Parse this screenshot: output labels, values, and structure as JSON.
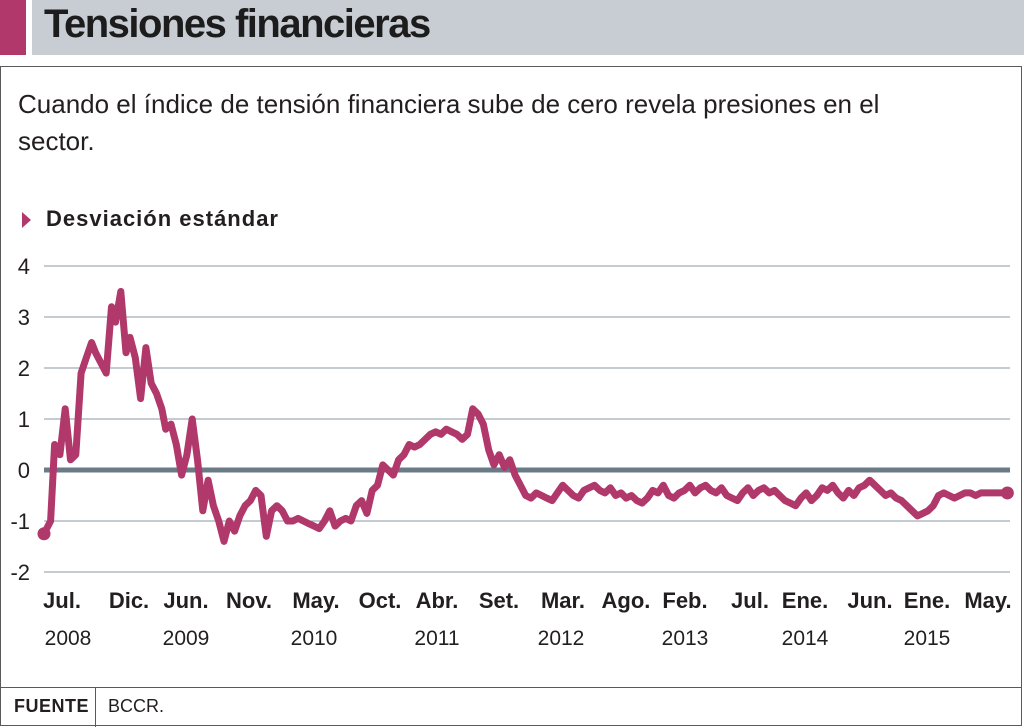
{
  "header": {
    "title": "Tensiones financieras"
  },
  "subtitle": "Cuando el índice de tensión financiera sube de cero revela presiones en el sector.",
  "unit_label": "Desviación estándar",
  "source": {
    "key": "FUENTE",
    "value": "BCCR."
  },
  "colors": {
    "accent": "#b0386a",
    "title_bar": "#c8ccd3",
    "zero_line": "#6b7a87",
    "grid": "#8a97a6"
  },
  "chart_data": {
    "type": "line",
    "title": "Tensiones financieras",
    "ylabel": "Desviación estándar",
    "ylim": [
      -2,
      4
    ],
    "yticks": [
      "4",
      "3",
      "2",
      "1",
      "0",
      "-1",
      "-2"
    ],
    "grid": true,
    "x_month_labels": [
      "Jul.",
      "Dic.",
      "Jun.",
      "Nov.",
      "May.",
      "Oct.",
      "Abr.",
      "Set.",
      "Mar.",
      "Ago.",
      "Feb.",
      "Jul.",
      "Ene.",
      "Jun.",
      "Ene.",
      "May."
    ],
    "x_year_labels": [
      "2008",
      "2009",
      "2010",
      "2011",
      "2012",
      "2013",
      "2014",
      "2015"
    ],
    "series": [
      {
        "name": "Índice de tensión financiera",
        "x": [
          2008.5,
          2008.55,
          2008.58,
          2008.62,
          2008.66,
          2008.7,
          2008.74,
          2008.78,
          2008.82,
          2008.86,
          2008.89,
          2008.93,
          2008.97,
          2009.01,
          2009.04,
          2009.08,
          2009.12,
          2009.15,
          2009.19,
          2009.23,
          2009.27,
          2009.31,
          2009.35,
          2009.39,
          2009.42,
          2009.46,
          2009.5,
          2009.54,
          2009.58,
          2009.62,
          2009.66,
          2009.7,
          2009.74,
          2009.78,
          2009.82,
          2009.86,
          2009.9,
          2009.94,
          2009.98,
          2010.02,
          2010.06,
          2010.1,
          2010.14,
          2010.18,
          2010.22,
          2010.26,
          2010.3,
          2010.34,
          2010.38,
          2010.42,
          2010.46,
          2010.5,
          2010.54,
          2010.58,
          2010.62,
          2010.66,
          2010.7,
          2010.74,
          2010.78,
          2010.82,
          2010.86,
          2010.9,
          2010.94,
          2010.98,
          2011.02,
          2011.06,
          2011.1,
          2011.14,
          2011.18,
          2011.22,
          2011.26,
          2011.3,
          2011.34,
          2011.38,
          2011.42,
          2011.46,
          2011.5,
          2011.54,
          2011.58,
          2011.62,
          2011.66,
          2011.7,
          2011.74,
          2011.78,
          2011.82,
          2011.86,
          2011.9,
          2011.94,
          2011.98,
          2012.02,
          2012.06,
          2012.1,
          2012.14,
          2012.18,
          2012.22,
          2012.26,
          2012.3,
          2012.34,
          2012.38,
          2012.42,
          2012.46,
          2012.5,
          2012.54,
          2012.58,
          2012.62,
          2012.66,
          2012.7,
          2012.74,
          2012.78,
          2012.82,
          2012.86,
          2012.9,
          2012.94,
          2012.98,
          2013.02,
          2013.06,
          2013.1,
          2013.14,
          2013.18,
          2013.22,
          2013.26,
          2013.3,
          2013.34,
          2013.38,
          2013.42,
          2013.46,
          2013.5,
          2013.54,
          2013.58,
          2013.62,
          2013.66,
          2013.7,
          2013.74,
          2013.78,
          2013.82,
          2013.86,
          2013.9,
          2013.94,
          2013.98,
          2014.02,
          2014.06,
          2014.1,
          2014.14,
          2014.18,
          2014.22,
          2014.26,
          2014.3,
          2014.34,
          2014.38,
          2014.42,
          2014.46,
          2014.5,
          2014.54,
          2014.58,
          2014.62,
          2014.66,
          2014.7,
          2014.74,
          2014.78,
          2014.82,
          2014.86,
          2014.9,
          2014.94,
          2014.98,
          2015.02,
          2015.06,
          2015.1,
          2015.14,
          2015.18,
          2015.22,
          2015.26,
          2015.3,
          2015.34,
          2015.38,
          2015.42,
          2015.46,
          2015.5,
          2015.54,
          2015.58,
          2015.62,
          2015.66,
          2015.7,
          2015.74,
          2015.78
        ],
        "values": [
          -1.25,
          -1.0,
          0.5,
          0.3,
          1.2,
          0.2,
          0.3,
          1.9,
          2.2,
          2.5,
          2.3,
          2.1,
          1.9,
          3.2,
          2.9,
          3.5,
          2.3,
          2.6,
          2.2,
          1.4,
          2.4,
          1.7,
          1.5,
          1.2,
          0.8,
          0.9,
          0.5,
          -0.1,
          0.3,
          1.0,
          0.2,
          -0.8,
          -0.2,
          -0.7,
          -1.0,
          -1.4,
          -1.0,
          -1.2,
          -0.9,
          -0.7,
          -0.6,
          -0.4,
          -0.5,
          -1.3,
          -0.8,
          -0.7,
          -0.8,
          -1.0,
          -1.0,
          -0.95,
          -1.0,
          -1.05,
          -1.1,
          -1.15,
          -1.0,
          -0.8,
          -1.1,
          -1.0,
          -0.95,
          -1.0,
          -0.7,
          -0.6,
          -0.85,
          -0.4,
          -0.3,
          0.1,
          0.0,
          -0.1,
          0.2,
          0.3,
          0.5,
          0.45,
          0.5,
          0.6,
          0.7,
          0.75,
          0.7,
          0.8,
          0.75,
          0.7,
          0.6,
          0.7,
          1.2,
          1.1,
          0.9,
          0.4,
          0.1,
          0.3,
          0.05,
          0.2,
          -0.1,
          -0.3,
          -0.5,
          -0.55,
          -0.45,
          -0.5,
          -0.55,
          -0.6,
          -0.45,
          -0.3,
          -0.4,
          -0.5,
          -0.55,
          -0.4,
          -0.35,
          -0.3,
          -0.4,
          -0.45,
          -0.35,
          -0.5,
          -0.45,
          -0.55,
          -0.5,
          -0.6,
          -0.65,
          -0.55,
          -0.4,
          -0.45,
          -0.3,
          -0.5,
          -0.55,
          -0.45,
          -0.4,
          -0.3,
          -0.45,
          -0.35,
          -0.3,
          -0.4,
          -0.45,
          -0.35,
          -0.5,
          -0.55,
          -0.6,
          -0.45,
          -0.35,
          -0.5,
          -0.4,
          -0.35,
          -0.45,
          -0.4,
          -0.5,
          -0.6,
          -0.65,
          -0.7,
          -0.55,
          -0.45,
          -0.6,
          -0.5,
          -0.35,
          -0.4,
          -0.3,
          -0.45,
          -0.55,
          -0.4,
          -0.5,
          -0.35,
          -0.3,
          -0.2,
          -0.3,
          -0.4,
          -0.5,
          -0.45,
          -0.55,
          -0.6,
          -0.7,
          -0.8,
          -0.9,
          -0.85,
          -0.8,
          -0.7,
          -0.5,
          -0.45,
          -0.5,
          -0.55,
          -0.5,
          -0.45,
          -0.45,
          -0.5,
          -0.45,
          -0.45,
          -0.45,
          -0.45,
          -0.45,
          -0.45
        ]
      }
    ]
  }
}
